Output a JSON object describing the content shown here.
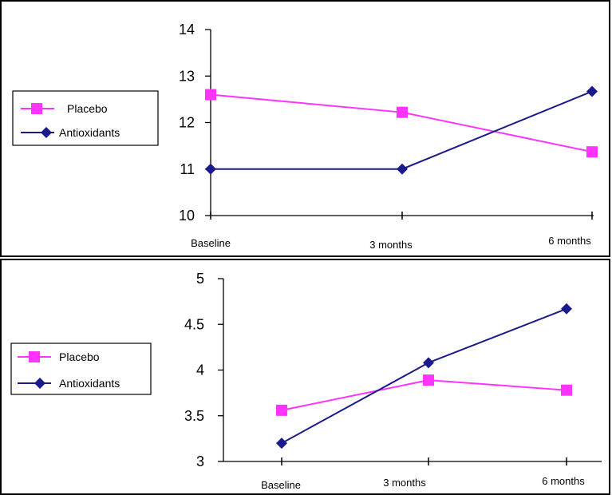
{
  "colors": {
    "placebo": "#ff33ff",
    "antioxidants": "#1a1a8c",
    "axis": "#000000",
    "border": "#000000"
  },
  "chart_data": [
    {
      "type": "line",
      "x": [
        "Baseline",
        "3 months",
        "6 months"
      ],
      "y_ticks": [
        "10",
        "11",
        "12",
        "13",
        "14"
      ],
      "ylim": [
        10,
        14
      ],
      "grid": false,
      "legend_position": "left",
      "series": [
        {
          "name": "Placebo",
          "marker": "square",
          "color": "#ff33ff",
          "values": [
            12.6,
            12.22,
            11.37
          ]
        },
        {
          "name": "Antioxidants",
          "marker": "diamond",
          "color": "#1a1a8c",
          "values": [
            11.0,
            11.0,
            12.67
          ]
        }
      ]
    },
    {
      "type": "line",
      "x": [
        "Baseline",
        "3 months",
        "6 months"
      ],
      "y_ticks": [
        "3",
        "3.5",
        "4",
        "4.5",
        "5"
      ],
      "ylim": [
        3,
        5
      ],
      "grid": false,
      "legend_position": "left",
      "series": [
        {
          "name": "Placebo",
          "marker": "square",
          "color": "#ff33ff",
          "values": [
            3.56,
            3.89,
            3.78
          ]
        },
        {
          "name": "Antioxidants",
          "marker": "diamond",
          "color": "#1a1a8c",
          "values": [
            3.2,
            4.08,
            4.67
          ]
        }
      ]
    }
  ]
}
